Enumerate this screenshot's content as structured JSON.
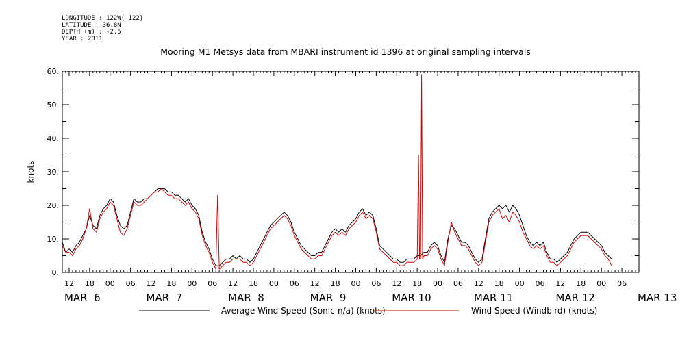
{
  "header": {
    "meta": [
      "LONGITUDE : 122W(-122)",
      "LATITUDE : 36.8N",
      "DEPTH (m) : -2.5",
      "YEAR : 2011"
    ],
    "title": "Mooring M1 Metsys data from MBARI instrument id 1396 at original sampling intervals"
  },
  "chart_data": {
    "type": "line",
    "title": "Mooring M1 Metsys data from MBARI instrument id 1396 at original sampling intervals",
    "ylabel": "knots",
    "xlabel": "",
    "ylim": [
      0,
      60
    ],
    "y_ticks": [
      "0.",
      "10.",
      "20.",
      "30.",
      "40.",
      "50.",
      "60."
    ],
    "xlim_hours": [
      10,
      179
    ],
    "x_hour_ticks": [
      "12",
      "18",
      "00",
      "06",
      "12",
      "18",
      "00",
      "06",
      "12",
      "18",
      "00",
      "06",
      "12",
      "18",
      "00",
      "06",
      "12",
      "18",
      "00",
      "06",
      "12",
      "18",
      "00",
      "06",
      "12",
      "18",
      "00",
      "06"
    ],
    "x_day_labels": [
      "MAR  6",
      "MAR  7",
      "MAR  8",
      "MAR  9",
      "MAR 10",
      "MAR 11",
      "MAR 12",
      "MAR 13"
    ],
    "grid": false,
    "legend": "bottom",
    "series": [
      {
        "name": "Average Wind Speed (Sonic-n/a) (knots)",
        "color": "#000000",
        "points": [
          [
            10,
            9
          ],
          [
            11,
            6
          ],
          [
            12,
            7
          ],
          [
            13,
            6
          ],
          [
            14,
            8
          ],
          [
            15,
            9
          ],
          [
            16,
            11
          ],
          [
            17,
            13
          ],
          [
            18,
            17
          ],
          [
            19,
            14
          ],
          [
            20,
            13
          ],
          [
            21,
            17
          ],
          [
            22,
            19
          ],
          [
            23,
            20
          ],
          [
            24,
            22
          ],
          [
            25,
            21
          ],
          [
            26,
            17
          ],
          [
            27,
            14
          ],
          [
            28,
            13
          ],
          [
            29,
            14
          ],
          [
            30,
            18
          ],
          [
            31,
            22
          ],
          [
            32,
            21
          ],
          [
            33,
            21
          ],
          [
            34,
            22
          ],
          [
            35,
            22
          ],
          [
            36,
            23
          ],
          [
            37,
            24
          ],
          [
            38,
            25
          ],
          [
            39,
            25
          ],
          [
            40,
            25
          ],
          [
            41,
            24
          ],
          [
            42,
            24
          ],
          [
            43,
            23
          ],
          [
            44,
            23
          ],
          [
            45,
            22
          ],
          [
            46,
            21
          ],
          [
            47,
            22
          ],
          [
            48,
            20
          ],
          [
            49,
            19
          ],
          [
            50,
            17
          ],
          [
            51,
            12
          ],
          [
            52,
            9
          ],
          [
            53,
            7
          ],
          [
            54,
            4
          ],
          [
            55,
            2
          ],
          [
            56,
            2
          ],
          [
            57,
            3
          ],
          [
            58,
            4
          ],
          [
            59,
            4
          ],
          [
            60,
            5
          ],
          [
            61,
            4
          ],
          [
            62,
            5
          ],
          [
            63,
            4
          ],
          [
            64,
            4
          ],
          [
            65,
            3
          ],
          [
            66,
            4
          ],
          [
            67,
            6
          ],
          [
            68,
            8
          ],
          [
            69,
            10
          ],
          [
            70,
            12
          ],
          [
            71,
            14
          ],
          [
            72,
            15
          ],
          [
            73,
            16
          ],
          [
            74,
            17
          ],
          [
            75,
            18
          ],
          [
            76,
            17
          ],
          [
            77,
            15
          ],
          [
            78,
            12
          ],
          [
            79,
            10
          ],
          [
            80,
            8
          ],
          [
            81,
            7
          ],
          [
            82,
            6
          ],
          [
            83,
            5
          ],
          [
            84,
            5
          ],
          [
            85,
            6
          ],
          [
            86,
            6
          ],
          [
            87,
            8
          ],
          [
            88,
            10
          ],
          [
            89,
            12
          ],
          [
            90,
            13
          ],
          [
            91,
            12
          ],
          [
            92,
            13
          ],
          [
            93,
            12
          ],
          [
            94,
            14
          ],
          [
            95,
            15
          ],
          [
            96,
            16
          ],
          [
            97,
            18
          ],
          [
            98,
            19
          ],
          [
            99,
            17
          ],
          [
            100,
            18
          ],
          [
            101,
            17
          ],
          [
            102,
            13
          ],
          [
            103,
            8
          ],
          [
            104,
            7
          ],
          [
            105,
            6
          ],
          [
            106,
            5
          ],
          [
            107,
            4
          ],
          [
            108,
            4
          ],
          [
            109,
            3
          ],
          [
            110,
            3
          ],
          [
            111,
            4
          ],
          [
            112,
            4
          ],
          [
            113,
            4
          ],
          [
            114,
            5
          ],
          [
            115,
            5
          ],
          [
            116,
            6
          ],
          [
            117,
            6
          ],
          [
            118,
            8
          ],
          [
            119,
            9
          ],
          [
            120,
            8
          ],
          [
            121,
            5
          ],
          [
            122,
            3
          ],
          [
            123,
            10
          ],
          [
            124,
            14
          ],
          [
            125,
            13
          ],
          [
            126,
            11
          ],
          [
            127,
            9
          ],
          [
            128,
            9
          ],
          [
            129,
            8
          ],
          [
            130,
            6
          ],
          [
            131,
            4
          ],
          [
            132,
            3
          ],
          [
            133,
            4
          ],
          [
            134,
            10
          ],
          [
            135,
            16
          ],
          [
            136,
            18
          ],
          [
            137,
            19
          ],
          [
            138,
            20
          ],
          [
            139,
            19
          ],
          [
            140,
            20
          ],
          [
            141,
            18
          ],
          [
            142,
            20
          ],
          [
            143,
            19
          ],
          [
            144,
            17
          ],
          [
            145,
            14
          ],
          [
            146,
            11
          ],
          [
            147,
            9
          ],
          [
            148,
            8
          ],
          [
            149,
            9
          ],
          [
            150,
            8
          ],
          [
            151,
            9
          ],
          [
            152,
            6
          ],
          [
            153,
            4
          ],
          [
            154,
            4
          ],
          [
            155,
            3
          ],
          [
            156,
            4
          ],
          [
            157,
            5
          ],
          [
            158,
            6
          ],
          [
            159,
            8
          ],
          [
            160,
            10
          ],
          [
            161,
            11
          ],
          [
            162,
            12
          ],
          [
            163,
            12
          ],
          [
            164,
            12
          ],
          [
            165,
            11
          ],
          [
            166,
            10
          ],
          [
            167,
            9
          ],
          [
            168,
            8
          ],
          [
            169,
            6
          ],
          [
            170,
            5
          ],
          [
            171,
            4
          ]
        ]
      },
      {
        "name": "Wind Speed (Windbird) (knots)",
        "color": "#dd0000",
        "points": [
          [
            10,
            8
          ],
          [
            11,
            6
          ],
          [
            12,
            6
          ],
          [
            13,
            5
          ],
          [
            14,
            7
          ],
          [
            15,
            8
          ],
          [
            16,
            10
          ],
          [
            17,
            13
          ],
          [
            18,
            19
          ],
          [
            19,
            13
          ],
          [
            20,
            12
          ],
          [
            21,
            16
          ],
          [
            22,
            18
          ],
          [
            23,
            19
          ],
          [
            24,
            21
          ],
          [
            25,
            20
          ],
          [
            26,
            16
          ],
          [
            27,
            12
          ],
          [
            28,
            11
          ],
          [
            29,
            13
          ],
          [
            30,
            17
          ],
          [
            31,
            21
          ],
          [
            32,
            20
          ],
          [
            33,
            20
          ],
          [
            34,
            21
          ],
          [
            35,
            22
          ],
          [
            36,
            23
          ],
          [
            37,
            24
          ],
          [
            38,
            24
          ],
          [
            39,
            25
          ],
          [
            40,
            24
          ],
          [
            41,
            23
          ],
          [
            42,
            23
          ],
          [
            43,
            22
          ],
          [
            44,
            22
          ],
          [
            45,
            21
          ],
          [
            46,
            20
          ],
          [
            47,
            21
          ],
          [
            48,
            19
          ],
          [
            49,
            18
          ],
          [
            50,
            16
          ],
          [
            51,
            11
          ],
          [
            52,
            8
          ],
          [
            53,
            6
          ],
          [
            54,
            3
          ],
          [
            55,
            1
          ],
          [
            55.5,
            23
          ],
          [
            56,
            1
          ],
          [
            57,
            2
          ],
          [
            58,
            3
          ],
          [
            59,
            3
          ],
          [
            60,
            4
          ],
          [
            61,
            4
          ],
          [
            62,
            4
          ],
          [
            63,
            3
          ],
          [
            64,
            3
          ],
          [
            65,
            2
          ],
          [
            66,
            3
          ],
          [
            67,
            5
          ],
          [
            68,
            7
          ],
          [
            69,
            9
          ],
          [
            70,
            11
          ],
          [
            71,
            13
          ],
          [
            72,
            14
          ],
          [
            73,
            15
          ],
          [
            74,
            16
          ],
          [
            75,
            17
          ],
          [
            76,
            16
          ],
          [
            77,
            14
          ],
          [
            78,
            11
          ],
          [
            79,
            9
          ],
          [
            80,
            7
          ],
          [
            81,
            6
          ],
          [
            82,
            5
          ],
          [
            83,
            4
          ],
          [
            84,
            4
          ],
          [
            85,
            5
          ],
          [
            86,
            5
          ],
          [
            87,
            7
          ],
          [
            88,
            9
          ],
          [
            89,
            11
          ],
          [
            90,
            12
          ],
          [
            91,
            11
          ],
          [
            92,
            12
          ],
          [
            93,
            11
          ],
          [
            94,
            13
          ],
          [
            95,
            14
          ],
          [
            96,
            15
          ],
          [
            97,
            17
          ],
          [
            98,
            18
          ],
          [
            99,
            16
          ],
          [
            100,
            17
          ],
          [
            101,
            16
          ],
          [
            102,
            12
          ],
          [
            103,
            7
          ],
          [
            104,
            6
          ],
          [
            105,
            5
          ],
          [
            106,
            4
          ],
          [
            107,
            3
          ],
          [
            108,
            3
          ],
          [
            109,
            2
          ],
          [
            110,
            2
          ],
          [
            111,
            3
          ],
          [
            112,
            3
          ],
          [
            113,
            3
          ],
          [
            114,
            4
          ],
          [
            114.4,
            35
          ],
          [
            114.7,
            4
          ],
          [
            115,
            4
          ],
          [
            115.3,
            59
          ],
          [
            115.6,
            4
          ],
          [
            116,
            5
          ],
          [
            117,
            5
          ],
          [
            118,
            7
          ],
          [
            119,
            8
          ],
          [
            120,
            7
          ],
          [
            121,
            4
          ],
          [
            122,
            2
          ],
          [
            123,
            9
          ],
          [
            124,
            15
          ],
          [
            125,
            12
          ],
          [
            126,
            10
          ],
          [
            127,
            8
          ],
          [
            128,
            8
          ],
          [
            129,
            7
          ],
          [
            130,
            5
          ],
          [
            131,
            3
          ],
          [
            132,
            2
          ],
          [
            133,
            3
          ],
          [
            134,
            9
          ],
          [
            135,
            15
          ],
          [
            136,
            17
          ],
          [
            137,
            18
          ],
          [
            138,
            19
          ],
          [
            139,
            16
          ],
          [
            140,
            17
          ],
          [
            141,
            15
          ],
          [
            142,
            18
          ],
          [
            143,
            17
          ],
          [
            144,
            15
          ],
          [
            145,
            12
          ],
          [
            146,
            10
          ],
          [
            147,
            8
          ],
          [
            148,
            7
          ],
          [
            149,
            8
          ],
          [
            150,
            7
          ],
          [
            151,
            8
          ],
          [
            152,
            5
          ],
          [
            153,
            3
          ],
          [
            154,
            3
          ],
          [
            155,
            2
          ],
          [
            156,
            3
          ],
          [
            157,
            4
          ],
          [
            158,
            5
          ],
          [
            159,
            7
          ],
          [
            160,
            9
          ],
          [
            161,
            10
          ],
          [
            162,
            11
          ],
          [
            163,
            11
          ],
          [
            164,
            11
          ],
          [
            165,
            10
          ],
          [
            166,
            9
          ],
          [
            167,
            8
          ],
          [
            168,
            7
          ],
          [
            169,
            5
          ],
          [
            170,
            4
          ],
          [
            171,
            2
          ]
        ]
      }
    ]
  }
}
